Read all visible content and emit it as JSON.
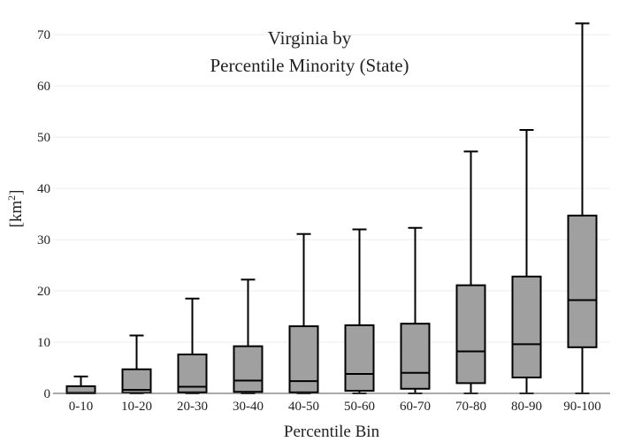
{
  "chart_data": {
    "type": "box",
    "title_lines": [
      "Virginia  by",
      "Percentile Minority (State)"
    ],
    "xlabel": "Percentile Bin",
    "ylabel_base": "[km",
    "ylabel_sup": "2",
    "ylabel_close": "]",
    "ylim": [
      0,
      74
    ],
    "yticks": [
      0,
      10,
      20,
      30,
      40,
      50,
      60,
      70
    ],
    "categories": [
      "0-10",
      "10-20",
      "20-30",
      "30-40",
      "40-50",
      "50-60",
      "60-70",
      "70-80",
      "80-90",
      "90-100"
    ],
    "boxes": [
      {
        "min": 0,
        "q1": 0,
        "median": 0.1,
        "q3": 1.4,
        "max": 3.3
      },
      {
        "min": 0,
        "q1": 0.1,
        "median": 0.7,
        "q3": 4.7,
        "max": 11.3
      },
      {
        "min": 0,
        "q1": 0.2,
        "median": 1.3,
        "q3": 7.6,
        "max": 18.5
      },
      {
        "min": 0,
        "q1": 0.3,
        "median": 2.5,
        "q3": 9.2,
        "max": 22.2
      },
      {
        "min": 0,
        "q1": 0.2,
        "median": 2.4,
        "q3": 13.1,
        "max": 31.1
      },
      {
        "min": 0,
        "q1": 0.5,
        "median": 3.8,
        "q3": 13.3,
        "max": 32.0
      },
      {
        "min": 0,
        "q1": 0.9,
        "median": 4.0,
        "q3": 13.6,
        "max": 32.3
      },
      {
        "min": 0,
        "q1": 2.0,
        "median": 8.2,
        "q3": 21.1,
        "max": 47.2
      },
      {
        "min": 0,
        "q1": 3.1,
        "median": 9.6,
        "q3": 22.8,
        "max": 51.4
      },
      {
        "min": 0,
        "q1": 9.0,
        "median": 18.2,
        "q3": 34.7,
        "max": 72.2
      }
    ],
    "box_color": "#a0a0a0",
    "grid": true,
    "legend": "none"
  }
}
